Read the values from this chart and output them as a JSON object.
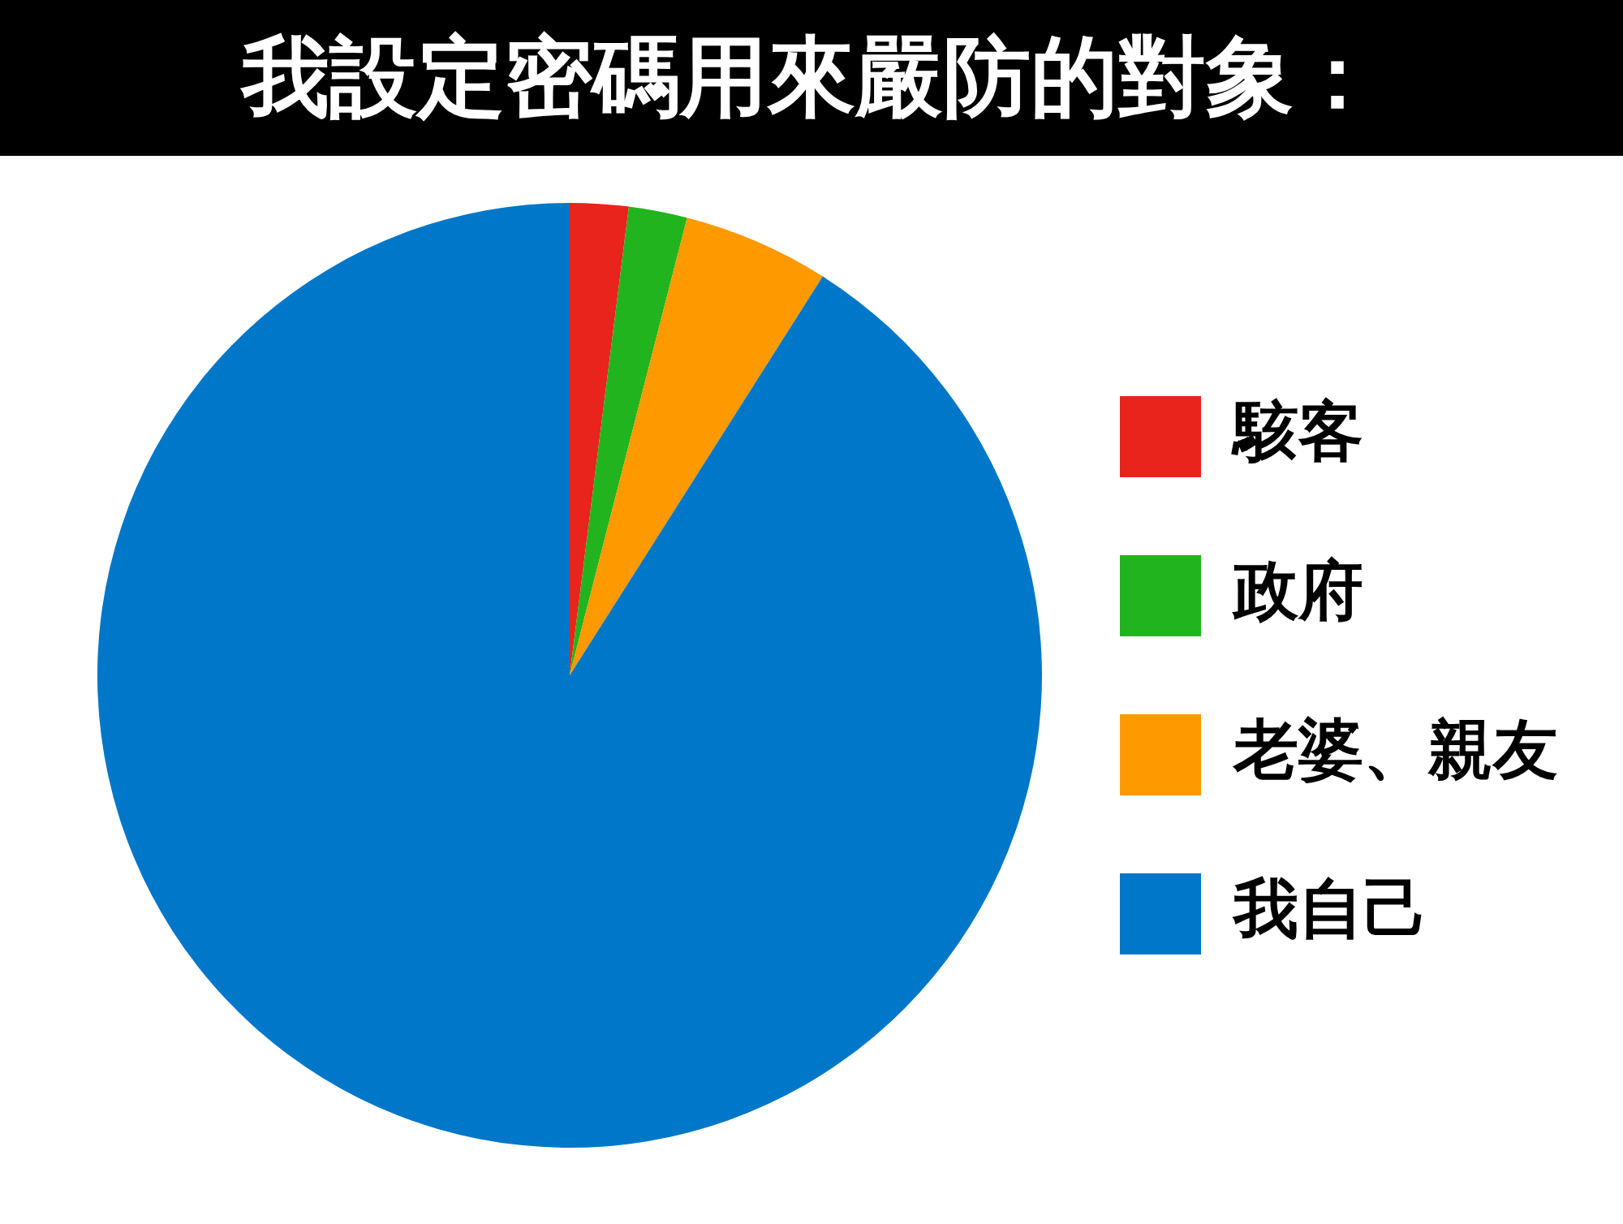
{
  "chart_data": {
    "type": "pie",
    "title": "我設定密碼用來嚴防的對象：",
    "categories": [
      "駭客",
      "政府",
      "老婆、親友",
      "我自己"
    ],
    "values": [
      2,
      2,
      5,
      91
    ],
    "colors": [
      "#e8241c",
      "#22b41e",
      "#ff9900",
      "#0077c8"
    ],
    "legend": "right"
  }
}
